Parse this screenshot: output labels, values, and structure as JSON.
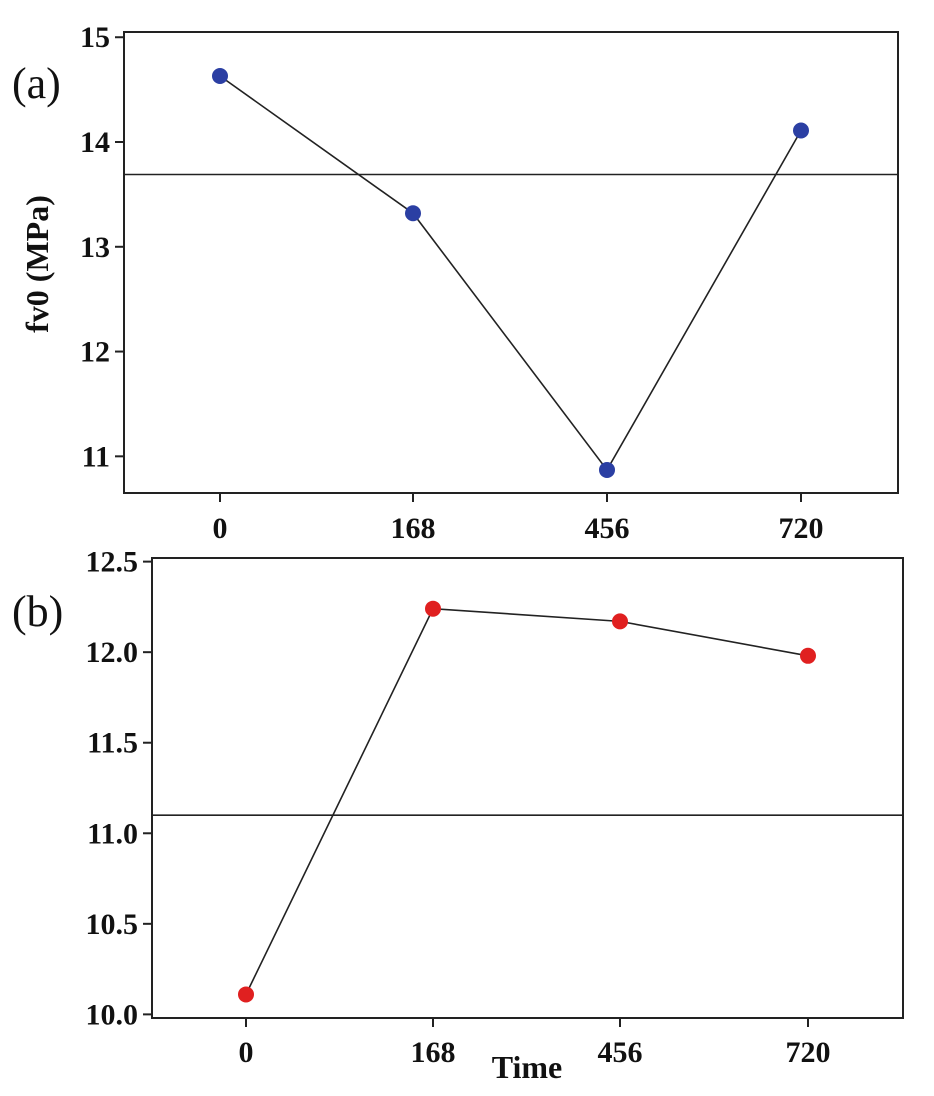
{
  "chart_data": [
    {
      "type": "line",
      "panel_label": "(a)",
      "ylabel": "fv0 (MPa)",
      "xlabel": "",
      "categories": [
        "0",
        "168",
        "456",
        "720"
      ],
      "series": [
        {
          "values": [
            14.63,
            13.32,
            10.87,
            14.11
          ],
          "color": "#2b3fa3"
        }
      ],
      "reference_line": 13.69,
      "ylim": [
        10.65,
        15.05
      ],
      "yticks": [
        "11",
        "12",
        "13",
        "14",
        "15"
      ],
      "ytick_values": [
        11,
        12,
        13,
        14,
        15
      ],
      "grid": false
    },
    {
      "type": "line",
      "panel_label": "(b)",
      "ylabel": "",
      "xlabel": "Time",
      "categories": [
        "0",
        "168",
        "456",
        "720"
      ],
      "series": [
        {
          "values": [
            10.11,
            12.24,
            12.17,
            11.98
          ],
          "color": "#e02020"
        }
      ],
      "reference_line": 11.1,
      "ylim": [
        9.98,
        12.52
      ],
      "yticks": [
        "10.0",
        "10.5",
        "11.0",
        "11.5",
        "12.0",
        "12.5"
      ],
      "ytick_values": [
        10.0,
        10.5,
        11.0,
        11.5,
        12.0,
        12.5
      ],
      "grid": false
    }
  ]
}
